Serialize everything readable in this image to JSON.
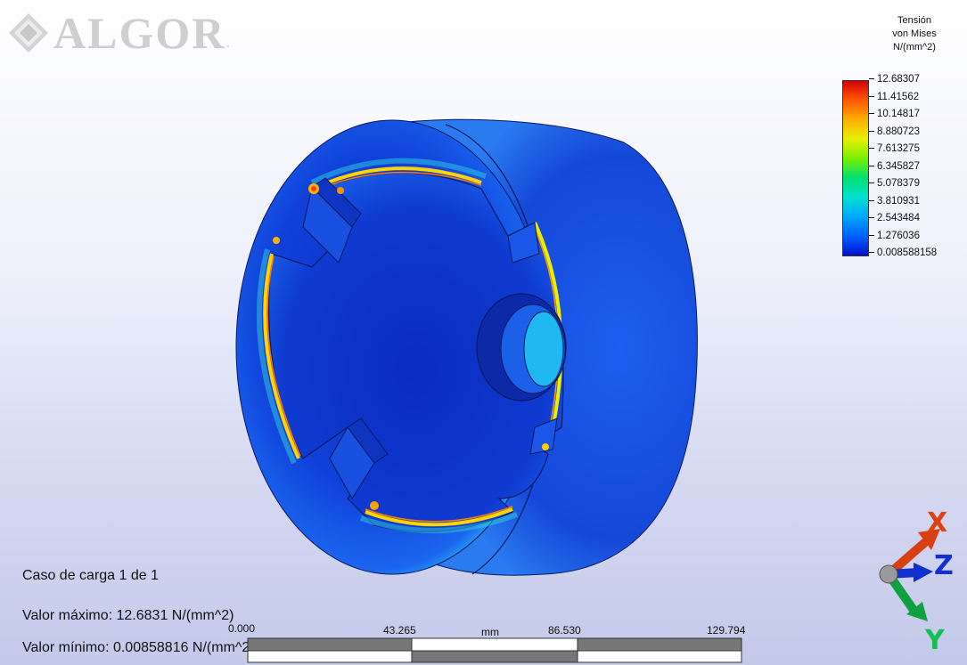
{
  "logo": {
    "text": "ALGOR",
    "mark": "diamond-logo-icon",
    "suffix": "."
  },
  "legend": {
    "title_lines": [
      "Tensión",
      "von Mises",
      "N/(mm^2)"
    ],
    "values": [
      "12.68307",
      "11.41562",
      "10.14817",
      "8.880723",
      "7.613275",
      "6.345827",
      "5.078379",
      "3.810931",
      "2.543484",
      "1.276036",
      "0.008588158"
    ],
    "colors": [
      "#d40000",
      "#ff5a00",
      "#ffb000",
      "#e6f000",
      "#78f000",
      "#00e070",
      "#00e0d0",
      "#00a8ff",
      "#0060ff",
      "#0010c8"
    ]
  },
  "info": {
    "load_case": "Caso de carga  1 de 1",
    "max_value": "Valor máximo: 12.6831 N/(mm^2)",
    "min_value": "Valor mínimo: 0.00858816 N/(mm^2)"
  },
  "scale": {
    "ticks": [
      "0.000",
      "43.265",
      "86.530",
      "129.794"
    ],
    "unit": "mm"
  },
  "triad": {
    "x": "X",
    "y": "Y",
    "z": "Z"
  }
}
